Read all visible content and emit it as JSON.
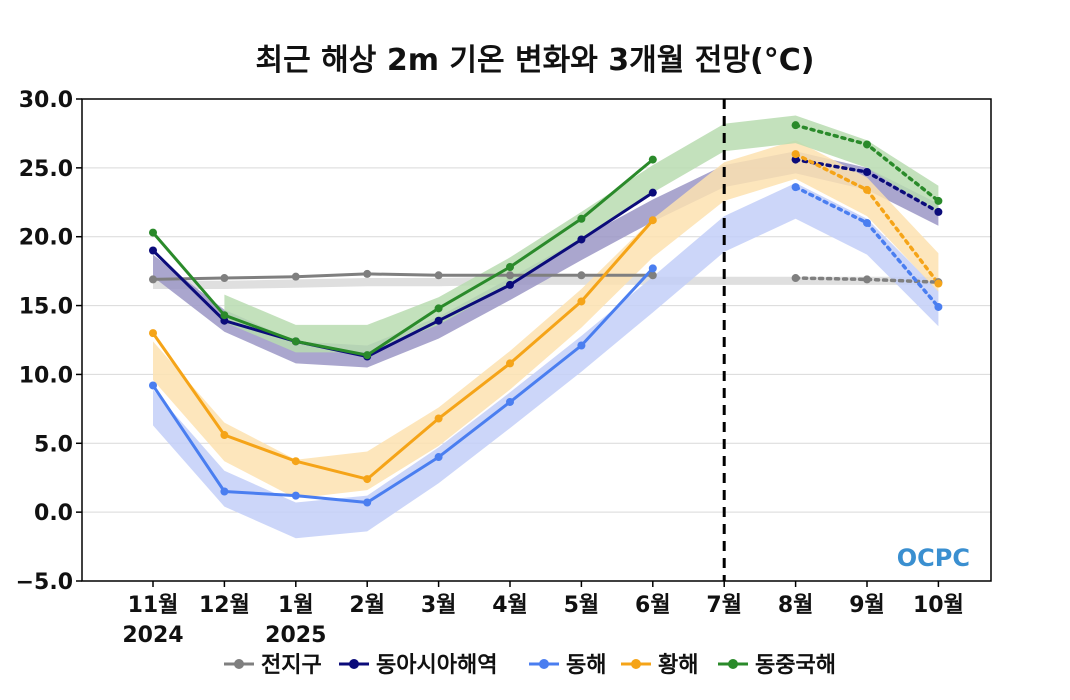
{
  "chart_data": {
    "type": "line",
    "title": "최근 해상 2m 기온 변화와 3개월 전망(°C)",
    "categories": [
      "11월",
      "12월",
      "1월",
      "2월",
      "3월",
      "4월",
      "5월",
      "6월",
      "7월",
      "8월",
      "9월",
      "10월"
    ],
    "year_labels": [
      {
        "index": 0,
        "text": "2024"
      },
      {
        "index": 2,
        "text": "2025"
      }
    ],
    "ylim": [
      -5.0,
      30.0
    ],
    "yticks": [
      "30.0",
      "25.0",
      "20.0",
      "15.0",
      "10.0",
      "5.0",
      "0.0",
      "−5.0"
    ],
    "ytick_values": [
      30,
      25,
      20,
      15,
      10,
      5,
      0,
      -5
    ],
    "grid": true,
    "divider_after_index": 8,
    "legend_position": "bottom",
    "logo": {
      "text": "OCPC",
      "color": "#3a8fd0"
    },
    "series": [
      {
        "name": "전지구",
        "color": "#7f7f7f",
        "values": [
          16.9,
          17.0,
          17.1,
          17.3,
          17.2,
          17.2,
          17.2,
          17.2,
          null,
          17.0,
          16.9,
          16.7
        ],
        "band_center": [
          16.5,
          16.5,
          16.6,
          16.7,
          16.7,
          16.8,
          16.8,
          16.8,
          16.8,
          16.8,
          16.8,
          16.8
        ],
        "band_width": 0.3,
        "band_color": "#d9d9d9"
      },
      {
        "name": "동아시아해역",
        "color": "#0b0b7a",
        "values": [
          19.0,
          13.9,
          12.4,
          11.3,
          13.9,
          16.5,
          19.8,
          23.2,
          null,
          25.6,
          24.7,
          21.8
        ],
        "band_center": [
          17.9,
          13.9,
          11.6,
          11.3,
          13.4,
          16.2,
          19.1,
          21.9,
          24.4,
          25.4,
          24.2,
          21.6
        ],
        "band_width": 0.8,
        "band_color": "#9b96c6"
      },
      {
        "name": "동해",
        "color": "#4a7ef0",
        "values": [
          9.2,
          1.5,
          1.2,
          0.7,
          4.0,
          8.0,
          12.1,
          17.7,
          null,
          23.6,
          21.0,
          14.9
        ],
        "band_center": [
          7.6,
          1.7,
          -0.6,
          -0.1,
          3.4,
          7.4,
          11.5,
          15.8,
          20.2,
          22.6,
          20.0,
          14.8
        ],
        "band_width": 1.3,
        "band_color": "#c3cff8"
      },
      {
        "name": "황해",
        "color": "#f5a418",
        "values": [
          13.0,
          5.6,
          3.7,
          2.4,
          6.8,
          10.8,
          15.3,
          21.2,
          null,
          26.0,
          23.4,
          16.6
        ],
        "band_center": [
          11.0,
          5.1,
          2.4,
          3.0,
          6.2,
          10.3,
          14.8,
          19.9,
          24.0,
          25.6,
          22.9,
          17.4
        ],
        "band_width": 1.4,
        "band_color": "#fde2b0"
      },
      {
        "name": "동중국해",
        "color": "#2a8a2a",
        "values": [
          20.3,
          14.3,
          12.4,
          11.4,
          14.8,
          17.8,
          21.3,
          25.6,
          null,
          28.1,
          26.7,
          22.6
        ],
        "band_center": [
          null,
          14.8,
          12.6,
          12.6,
          14.6,
          17.5,
          20.8,
          24.2,
          27.2,
          27.8,
          26.0,
          22.7
        ],
        "band_width": 1.0,
        "band_color": "#b8dcb0"
      }
    ]
  }
}
